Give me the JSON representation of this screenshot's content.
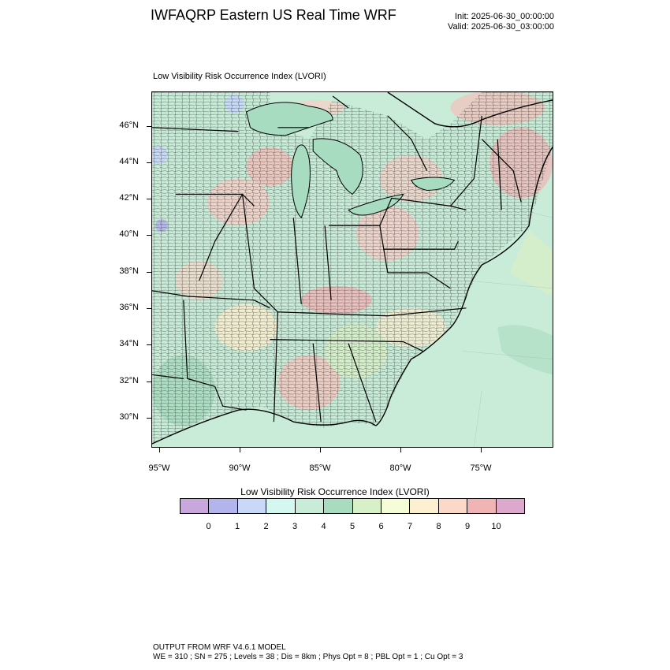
{
  "header": {
    "title": "IWFAQRP Eastern US Real Time WRF",
    "init": "Init: 2025-06-30_00:00:00",
    "valid": "Valid: 2025-06-30_03:00:00"
  },
  "panel": {
    "title": "Low Visibility Risk Occurrence Index   (LVORI)"
  },
  "map": {
    "lat_labels": [
      "46°N",
      "44°N",
      "42°N",
      "40°N",
      "38°N",
      "36°N",
      "34°N",
      "32°N",
      "30°N"
    ],
    "lon_labels": [
      "95°W",
      "90°W",
      "85°W",
      "80°W",
      "75°W"
    ]
  },
  "legend": {
    "title": "Low Visibility Risk Occurrence Index  (LVORI)",
    "colors": [
      "#c8a8dc",
      "#b4b4ec",
      "#c8d8f8",
      "#d4f8f0",
      "#c8ecd8",
      "#a8dcc0",
      "#d8f0c8",
      "#f4fcd8",
      "#fcf0d0",
      "#fcd8c8",
      "#f0b4b4",
      "#dca8cc"
    ],
    "ticks": [
      "0",
      "1",
      "2",
      "3",
      "4",
      "5",
      "6",
      "7",
      "8",
      "9",
      "10"
    ]
  },
  "footer": {
    "line1": "OUTPUT FROM WRF V4.6.1 MODEL",
    "line2": "WE = 310 ; SN = 275 ; Levels = 38 ; Dis = 8km ; Phys Opt = 8 ; PBL Opt = 1 ; Cu Opt = 3"
  }
}
